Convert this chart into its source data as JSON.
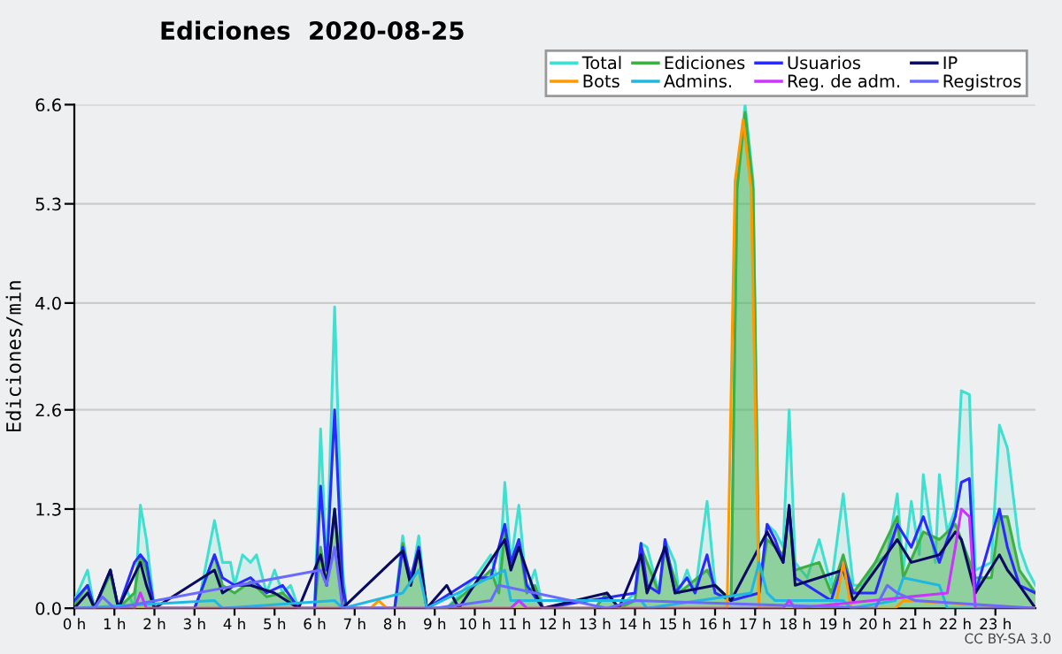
{
  "chart_data": {
    "type": "line",
    "title": "Ediciones  2020-08-25",
    "ylabel": "Ediciones/min",
    "xlim": [
      0,
      24
    ],
    "ylim": [
      0,
      6.6
    ],
    "xticks": [
      {
        "value": 0,
        "label": "0 h"
      },
      {
        "value": 1,
        "label": "1 h"
      },
      {
        "value": 2,
        "label": "2 h"
      },
      {
        "value": 3,
        "label": "3 h"
      },
      {
        "value": 4,
        "label": "4 h"
      },
      {
        "value": 5,
        "label": "5 h"
      },
      {
        "value": 6,
        "label": "6 h"
      },
      {
        "value": 7,
        "label": "7 h"
      },
      {
        "value": 8,
        "label": "8 h"
      },
      {
        "value": 9,
        "label": "9 h"
      },
      {
        "value": 10,
        "label": "10 h"
      },
      {
        "value": 11,
        "label": "11 h"
      },
      {
        "value": 12,
        "label": "12 h"
      },
      {
        "value": 13,
        "label": "13 h"
      },
      {
        "value": 14,
        "label": "14 h"
      },
      {
        "value": 15,
        "label": "15 h"
      },
      {
        "value": 16,
        "label": "16 h"
      },
      {
        "value": 17,
        "label": "17 h"
      },
      {
        "value": 18,
        "label": "18 h"
      },
      {
        "value": 19,
        "label": "19 h"
      },
      {
        "value": 20,
        "label": "20 h"
      },
      {
        "value": 21,
        "label": "21 h"
      },
      {
        "value": 22,
        "label": "22 h"
      },
      {
        "value": 23,
        "label": "23 h"
      }
    ],
    "yticks": [
      {
        "value": 0,
        "label": "0.0"
      },
      1.3,
      2.6,
      {
        "value": 4,
        "label": "4.0"
      },
      5.3,
      6.6
    ],
    "grid": "y",
    "legend": "top right",
    "annotations": [
      "CC BY-SA 3.0"
    ],
    "series": [
      {
        "name": "Total",
        "type": "area",
        "color": "#40e0d0",
        "x": [
          0,
          0.33,
          0.5,
          0.9,
          1.1,
          1.3,
          1.5,
          1.65,
          1.8,
          2.0,
          3.0,
          3.15,
          3.5,
          3.7,
          3.9,
          4.0,
          4.2,
          4.4,
          4.55,
          4.8,
          5.0,
          5.2,
          5.4,
          5.6,
          6.0,
          6.15,
          6.3,
          6.5,
          6.7,
          6.8,
          8.0,
          8.2,
          8.4,
          8.6,
          8.8,
          9.3,
          10.0,
          10.4,
          10.6,
          10.75,
          10.9,
          11.1,
          11.3,
          11.5,
          11.7,
          13.0,
          13.3,
          13.6,
          14.0,
          14.15,
          14.3,
          14.6,
          14.75,
          15.0,
          15.1,
          15.3,
          15.5,
          15.8,
          16.0,
          16.2,
          16.4,
          16.55,
          16.75,
          16.95,
          17.1,
          17.3,
          17.5,
          17.7,
          17.85,
          18.0,
          18.3,
          18.6,
          18.9,
          19.2,
          19.45,
          19.7,
          20.0,
          20.3,
          20.55,
          20.7,
          20.9,
          21.1,
          21.2,
          21.5,
          21.6,
          21.8,
          22.0,
          22.15,
          22.35,
          22.5,
          22.9,
          23.1,
          23.3,
          23.6,
          23.8,
          24.0
        ],
        "values": [
          0.1,
          0.5,
          0,
          0.5,
          0,
          0.25,
          0,
          1.35,
          0.9,
          0,
          0,
          0.2,
          1.15,
          0.6,
          0.6,
          0.3,
          0.7,
          0.6,
          0.7,
          0.2,
          0.5,
          0.2,
          0.3,
          0,
          0,
          2.35,
          0.5,
          3.95,
          0.5,
          0,
          0,
          0.95,
          0.3,
          0.95,
          0,
          0,
          0.4,
          0.7,
          0.3,
          1.65,
          0.6,
          1.35,
          0.2,
          0.5,
          0,
          0,
          0.2,
          0,
          0.2,
          0.85,
          0.8,
          0.2,
          0.9,
          0.6,
          0.2,
          0.5,
          0.2,
          1.4,
          0.3,
          0.2,
          0.1,
          5.6,
          6.6,
          5.6,
          0.2,
          1.1,
          1.0,
          0.8,
          2.6,
          0.6,
          0.4,
          0.9,
          0.3,
          1.5,
          0.3,
          0.3,
          0.6,
          0.7,
          1.5,
          0.5,
          1.4,
          0.7,
          1.75,
          0.6,
          1.75,
          1.0,
          1.3,
          2.85,
          2.8,
          0.5,
          0.6,
          2.4,
          2.1,
          0.8,
          0.5,
          0.3
        ]
      },
      {
        "name": "Ediciones",
        "type": "area",
        "color": "#3cb043",
        "x": [
          0,
          0.33,
          0.5,
          0.9,
          1.1,
          1.5,
          1.65,
          1.8,
          2.0,
          3.0,
          3.15,
          3.5,
          3.7,
          4.0,
          4.4,
          4.8,
          5.2,
          5.6,
          6.0,
          6.15,
          6.3,
          6.5,
          6.7,
          6.8,
          8.0,
          8.2,
          8.4,
          8.6,
          8.8,
          9.3,
          10.0,
          10.4,
          10.6,
          10.75,
          10.9,
          11.1,
          11.3,
          11.5,
          11.7,
          13.0,
          13.3,
          13.6,
          14.0,
          14.15,
          14.6,
          14.75,
          15.1,
          15.8,
          16.0,
          16.4,
          16.55,
          16.75,
          16.95,
          17.1,
          17.3,
          17.7,
          17.85,
          18.0,
          18.6,
          18.9,
          19.2,
          19.45,
          20.0,
          20.55,
          20.7,
          21.2,
          21.6,
          22.0,
          22.15,
          22.5,
          22.9,
          23.1,
          23.3,
          23.6,
          24.0
        ],
        "values": [
          0.05,
          0.3,
          0,
          0.45,
          0,
          0.2,
          0.7,
          0.5,
          0,
          0,
          0.2,
          0.7,
          0.3,
          0.2,
          0.35,
          0.15,
          0.2,
          0,
          0,
          0.8,
          0.3,
          1.3,
          0.3,
          0,
          0,
          0.85,
          0.3,
          0.8,
          0,
          0,
          0.3,
          0.5,
          0.2,
          1.0,
          0.5,
          0.9,
          0.2,
          0.3,
          0,
          0,
          0.2,
          0,
          0.1,
          0.8,
          0.2,
          0.8,
          0.2,
          0.5,
          0.3,
          0.1,
          5.5,
          6.5,
          5.5,
          0.2,
          0.9,
          0.7,
          1.3,
          0.5,
          0.6,
          0.2,
          0.7,
          0.2,
          0.6,
          1.2,
          0.4,
          1.0,
          0.9,
          1.1,
          0.9,
          0.4,
          0.4,
          1.2,
          1.2,
          0.5,
          0.2
        ]
      },
      {
        "name": "Usuarios",
        "color": "#2a2aff",
        "x": [
          0,
          0.33,
          0.5,
          0.9,
          1.1,
          1.5,
          1.65,
          1.8,
          2.0,
          3.0,
          3.15,
          3.5,
          3.7,
          4.0,
          4.4,
          4.8,
          5.2,
          5.6,
          6.0,
          6.15,
          6.3,
          6.5,
          6.7,
          6.8,
          8.0,
          8.2,
          8.4,
          8.6,
          8.8,
          10.0,
          10.4,
          10.75,
          10.9,
          11.1,
          11.3,
          11.7,
          14.0,
          14.15,
          14.3,
          14.6,
          14.75,
          15.0,
          15.3,
          15.5,
          15.8,
          16.0,
          16.4,
          17.1,
          17.3,
          17.5,
          17.7,
          17.85,
          18.0,
          18.6,
          18.9,
          19.2,
          19.45,
          20.0,
          20.55,
          20.9,
          21.2,
          21.6,
          22.0,
          22.15,
          22.35,
          22.5,
          23.1,
          23.3,
          23.6,
          24.0
        ],
        "values": [
          0.1,
          0.3,
          0,
          0.5,
          0,
          0.6,
          0.7,
          0.6,
          0,
          0,
          0.2,
          0.7,
          0.4,
          0.3,
          0.4,
          0.2,
          0.3,
          0,
          0,
          1.6,
          0.5,
          2.6,
          0.3,
          0,
          0,
          0.8,
          0.4,
          0.8,
          0,
          0.4,
          0.4,
          1.1,
          0.6,
          0.9,
          0.3,
          0,
          0.2,
          0.85,
          0.3,
          0.2,
          0.9,
          0.2,
          0.4,
          0.2,
          0.7,
          0.2,
          0.1,
          0.2,
          1.1,
          0.9,
          0.6,
          1.3,
          0.4,
          0.2,
          0.1,
          0.6,
          0.2,
          0.2,
          1.1,
          0.8,
          1.2,
          0.6,
          1.2,
          1.65,
          1.7,
          0.2,
          1.3,
          0.8,
          0.3,
          0.2
        ]
      },
      {
        "name": "IP",
        "color": "#0a0a60",
        "x": [
          0,
          0.33,
          0.5,
          0.9,
          1.1,
          1.65,
          1.8,
          2.0,
          3.5,
          3.7,
          4.0,
          4.4,
          5.0,
          5.6,
          6.15,
          6.3,
          6.5,
          6.7,
          8.2,
          8.4,
          8.6,
          8.8,
          9.3,
          9.6,
          10.75,
          10.9,
          11.1,
          11.5,
          11.7,
          13.3,
          13.6,
          14.15,
          14.3,
          14.75,
          15.0,
          16.0,
          16.4,
          17.3,
          17.5,
          17.7,
          17.85,
          18.0,
          19.2,
          19.45,
          20.55,
          20.9,
          21.6,
          22.0,
          22.15,
          22.5,
          23.1,
          23.3,
          23.6,
          24.0
        ],
        "values": [
          0,
          0.2,
          0,
          0.5,
          0,
          0.6,
          0.3,
          0,
          0.5,
          0.2,
          0.3,
          0.3,
          0.2,
          0,
          0.7,
          0.3,
          1.3,
          0,
          0.75,
          0.3,
          0.75,
          0,
          0.3,
          0,
          0.9,
          0.5,
          0.8,
          0.2,
          0,
          0.2,
          0,
          0.7,
          0.2,
          0.8,
          0.2,
          0.3,
          0.1,
          1.0,
          0.8,
          0.6,
          1.35,
          0.3,
          0.5,
          0.1,
          0.9,
          0.6,
          0.7,
          1.0,
          0.9,
          0.2,
          0.7,
          0.5,
          0.3,
          0
        ]
      },
      {
        "name": "Bots",
        "color": "#ff9900",
        "x": [
          0,
          7.4,
          7.6,
          7.8,
          16.3,
          16.5,
          16.7,
          16.9,
          17.1,
          19.0,
          19.2,
          19.4,
          20.5,
          20.7,
          24.0
        ],
        "values": [
          0,
          0,
          0.1,
          0,
          0,
          5.6,
          6.4,
          5.5,
          0,
          0,
          0.6,
          0,
          0,
          0.1,
          0
        ]
      },
      {
        "name": "Admins.",
        "color": "#20b8e0",
        "x": [
          0,
          3.5,
          3.7,
          6.5,
          6.7,
          8.2,
          8.6,
          8.8,
          10.75,
          10.9,
          14.15,
          14.3,
          16.9,
          17.1,
          17.3,
          17.5,
          19.2,
          19.4,
          20.5,
          20.7,
          21.6,
          21.8,
          24.0
        ],
        "values": [
          0,
          0.1,
          0,
          0.1,
          0,
          0.2,
          0.5,
          0,
          0.5,
          0.1,
          0.1,
          0,
          0.2,
          0.6,
          0.2,
          0.1,
          0.1,
          0,
          0.1,
          0.4,
          0.3,
          0,
          0
        ]
      },
      {
        "name": "Reg. de adm.",
        "color": "#cc33ff",
        "x": [
          0,
          1.5,
          1.65,
          1.8,
          10.9,
          11.1,
          11.3,
          17.7,
          17.85,
          18.0,
          21.8,
          22.0,
          22.15,
          22.35,
          22.5,
          24.0
        ],
        "values": [
          0,
          0,
          0.2,
          0,
          0,
          0.1,
          0,
          0,
          0.1,
          0,
          0.2,
          0.8,
          1.3,
          1.2,
          0,
          0
        ]
      },
      {
        "name": "Registros",
        "color": "#6a6aff",
        "x": [
          0,
          0.5,
          0.7,
          1.0,
          6.15,
          6.3,
          6.5,
          6.7,
          9.0,
          10.4,
          10.6,
          13.3,
          14.0,
          20.0,
          20.3,
          20.55,
          21.0,
          24.0
        ],
        "values": [
          0,
          0,
          0.15,
          0,
          0.5,
          0.3,
          0.8,
          0,
          0,
          0.1,
          0.3,
          0,
          0.1,
          0,
          0.3,
          0.2,
          0.1,
          0
        ]
      }
    ]
  }
}
